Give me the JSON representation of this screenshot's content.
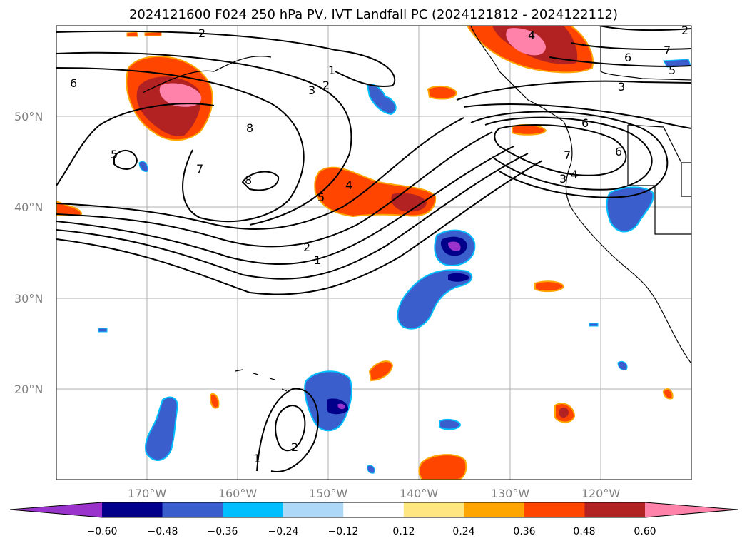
{
  "title": "2024121600 F024 250 hPa PV, IVT Landfall PC (2024121812 - 2024122112)",
  "lat_labels": [
    "50°N",
    "40°N",
    "30°N",
    "20°N"
  ],
  "lon_labels": [
    "170°W",
    "160°W",
    "150°W",
    "140°W",
    "130°W",
    "120°W"
  ],
  "colorbar": {
    "colors": [
      "#9933cc",
      "#00008b",
      "#3a5fcd",
      "#00bfff",
      "#add8f7",
      "#ffffff",
      "#ffe680",
      "#ffa500",
      "#ff4500",
      "#b22222",
      "#ff82ab"
    ],
    "tick_labels": [
      "−0.60",
      "−0.48",
      "−0.36",
      "−0.24",
      "−0.12",
      "0.12",
      "0.24",
      "0.36",
      "0.48",
      "0.60"
    ]
  },
  "contour_labels": [
    "2",
    "6",
    "1",
    "2",
    "3",
    "7",
    "8",
    "8",
    "5",
    "5",
    "4",
    "2",
    "1",
    "1",
    "2",
    "4",
    "6",
    "3",
    "6",
    "7",
    "6",
    "4",
    "3",
    "7",
    "5",
    "2"
  ]
}
